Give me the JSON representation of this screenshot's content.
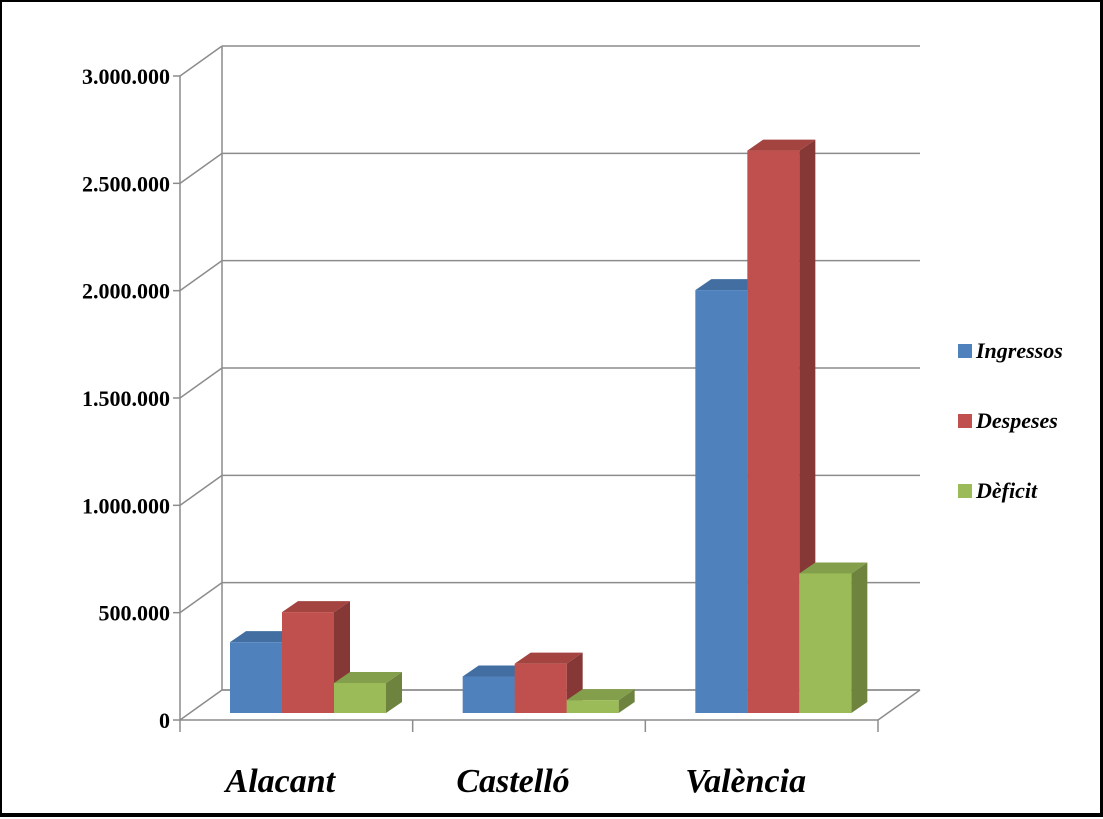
{
  "chart_data": {
    "type": "bar",
    "title": "",
    "xlabel": "",
    "ylabel": "",
    "categories": [
      "Alacant",
      "Castelló",
      "València"
    ],
    "series": [
      {
        "name": "Ingressos",
        "values": [
          330000,
          170000,
          1970000
        ],
        "color": "#4F81BD"
      },
      {
        "name": "Despeses",
        "values": [
          470000,
          230000,
          2620000
        ],
        "color": "#C0504D"
      },
      {
        "name": "Dèficit",
        "values": [
          140000,
          60000,
          650000
        ],
        "color": "#9BBB59"
      }
    ],
    "ylim": [
      0,
      3000000
    ],
    "yticks": [
      0,
      500000,
      1000000,
      1500000,
      2000000,
      2500000,
      3000000
    ],
    "ytick_labels": [
      "0",
      "500.000",
      "1.000.000",
      "1.500.000",
      "2.000.000",
      "2.500.000",
      "3.000.000"
    ],
    "grid": true,
    "legend": "right",
    "style": "3d-clustered-column"
  }
}
